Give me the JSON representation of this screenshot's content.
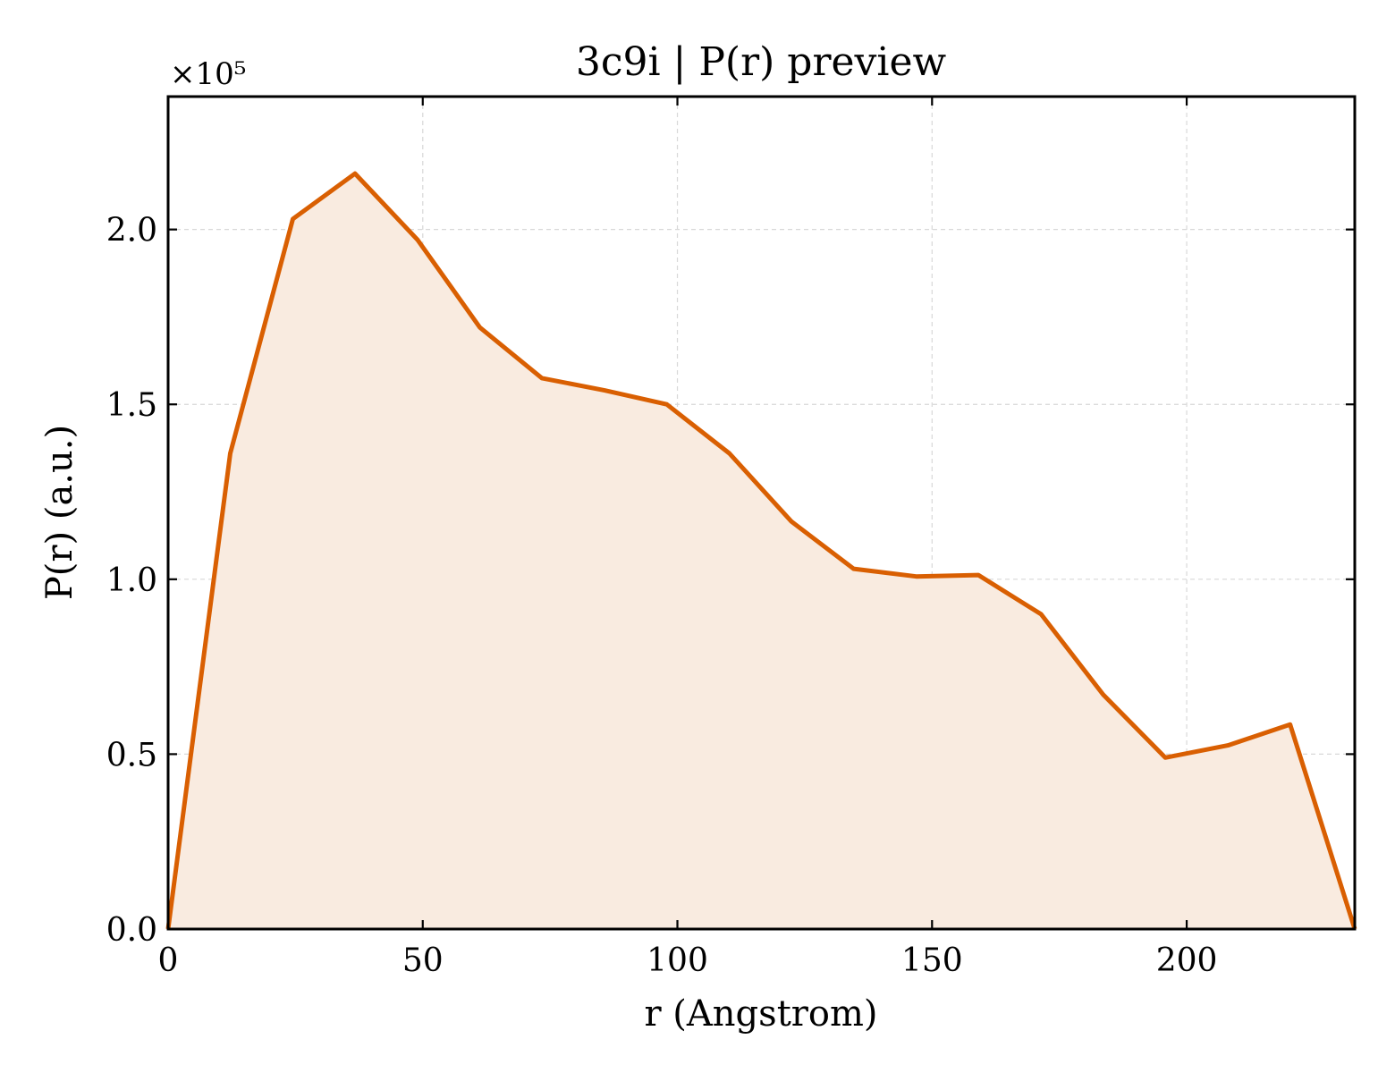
{
  "chart_data": {
    "type": "area",
    "title": "3c9i | P(r) preview",
    "xlabel": "r (Angstrom)",
    "ylabel": "P(r) (a.u.)",
    "y_offset_label": "×10⁵",
    "y_scale_factor": 100000,
    "xlim": [
      0,
      233
    ],
    "ylim": [
      0,
      2.38
    ],
    "xticks": [
      0,
      50,
      100,
      150,
      200
    ],
    "xtick_labels": [
      "0",
      "50",
      "100",
      "150",
      "200"
    ],
    "yticks": [
      0,
      0.5,
      1.0,
      1.5,
      2.0
    ],
    "ytick_labels": [
      "0.0",
      "0.5",
      "1.0",
      "1.5",
      "2.0"
    ],
    "grid": true,
    "series": [
      {
        "color": "#d95f02",
        "fill_color": "#f9ebe0",
        "x": [
          0,
          12.2,
          24.5,
          36.7,
          49.0,
          61.2,
          73.4,
          85.7,
          97.9,
          110.2,
          122.4,
          134.6,
          146.9,
          159.1,
          171.4,
          183.6,
          195.8,
          208.1,
          220.3,
          233
        ],
        "y": [
          0,
          1.36,
          2.03,
          2.16,
          1.97,
          1.72,
          1.575,
          1.54,
          1.5,
          1.36,
          1.165,
          1.03,
          1.008,
          1.012,
          0.9,
          0.67,
          0.49,
          0.525,
          0.585,
          0
        ]
      }
    ]
  }
}
